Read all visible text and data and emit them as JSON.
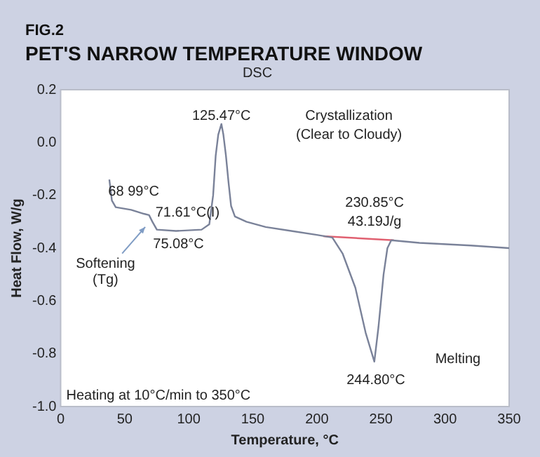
{
  "chart_data": {
    "type": "line",
    "title": "PET'S NARROW TEMPERATURE WINDOW",
    "subtitle": "DSC",
    "xlabel": "Temperature, °C",
    "ylabel": "Heat Flow, W/g",
    "xlim": [
      0,
      350
    ],
    "xticks": [
      0,
      50,
      100,
      150,
      200,
      250,
      300,
      350
    ],
    "ylim": [
      -1.0,
      0.2
    ],
    "yticks": [
      {
        "value": -1.0,
        "label": "-1.0"
      },
      {
        "value": -0.8,
        "label": "-0.8"
      },
      {
        "value": -0.6,
        "label": "-0.6"
      },
      {
        "value": -0.4,
        "label": "-0.4"
      },
      {
        "value": -0.2,
        "label": "-0.2"
      },
      {
        "value": 0,
        "label": "0.0"
      },
      {
        "value": 0.2,
        "label": "0.2"
      }
    ],
    "grid": false,
    "legend": false,
    "marker": "none",
    "line_style": "solid",
    "series": [
      {
        "color": "#7a8299",
        "x": [
          38,
          40,
          43,
          55,
          65,
          68.99,
          71.61,
          75.08,
          90,
          110,
          116,
          119,
          121,
          123,
          125.47,
          127,
          129,
          131,
          133,
          136,
          145,
          160,
          180,
          200,
          212,
          220,
          230,
          238,
          244.8,
          248,
          252,
          255,
          258,
          280,
          320,
          350
        ],
        "values": [
          -0.14,
          -0.22,
          -0.245,
          -0.255,
          -0.27,
          -0.275,
          -0.3,
          -0.33,
          -0.335,
          -0.33,
          -0.31,
          -0.2,
          -0.05,
          0.03,
          0.07,
          0.03,
          -0.05,
          -0.15,
          -0.24,
          -0.28,
          -0.3,
          -0.32,
          -0.335,
          -0.35,
          -0.36,
          -0.42,
          -0.55,
          -0.72,
          -0.83,
          -0.7,
          -0.5,
          -0.4,
          -0.37,
          -0.38,
          -0.39,
          -0.4
        ]
      },
      {
        "color": "#e06070",
        "x": [
          205,
          260
        ],
        "values": [
          -0.355,
          -0.37
        ]
      }
    ],
    "annotations": [
      "FIG.2",
      "Heating at 10°C/min to 350°C",
      "125.47°C",
      "Crystallization",
      "(Clear to Cloudy)",
      "68 99°C",
      "71.61°C(I)",
      "75.08°C",
      "Softening",
      "(Tg)",
      "230.85°C",
      "43.19J/g",
      "244.80°C",
      "Melting"
    ]
  }
}
